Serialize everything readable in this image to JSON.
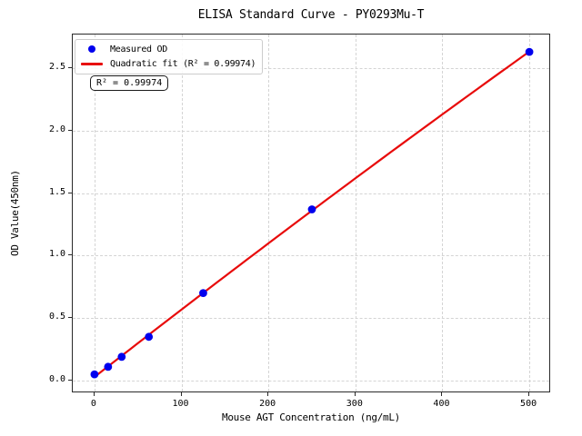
{
  "chart_data": {
    "type": "scatter",
    "title": "ELISA Standard Curve - PY0293Mu-T",
    "xlabel": "Mouse AGT Concentration (ng/mL)",
    "ylabel": "OD Value(450nm)",
    "xlim": [
      -25,
      525
    ],
    "ylim": [
      -0.102,
      2.769
    ],
    "xticks": [
      0,
      100,
      200,
      300,
      400,
      500
    ],
    "xtick_labels": [
      "0",
      "100",
      "200",
      "300",
      "400",
      "500"
    ],
    "yticks": [
      0.0,
      0.5,
      1.0,
      1.5,
      2.0,
      2.5
    ],
    "ytick_labels": [
      "0.0",
      "0.5",
      "1.0",
      "1.5",
      "2.0",
      "2.5"
    ],
    "grid": true,
    "legend_position": "upper left",
    "annotation": "R² = 0.99974",
    "series": [
      {
        "name": "Measured OD",
        "type": "scatter",
        "color": "#0000ee",
        "x": [
          0,
          15.625,
          31.25,
          62.5,
          125,
          250,
          500
        ],
        "y": [
          0.05,
          0.11,
          0.19,
          0.35,
          0.7,
          1.37,
          2.63
        ]
      },
      {
        "name": "Quadratic fit (R² = 0.99974)",
        "type": "line",
        "fit": "quadratic",
        "r_squared": 0.99974,
        "color": "#e80b0b",
        "x_range": [
          0,
          500
        ]
      }
    ]
  }
}
